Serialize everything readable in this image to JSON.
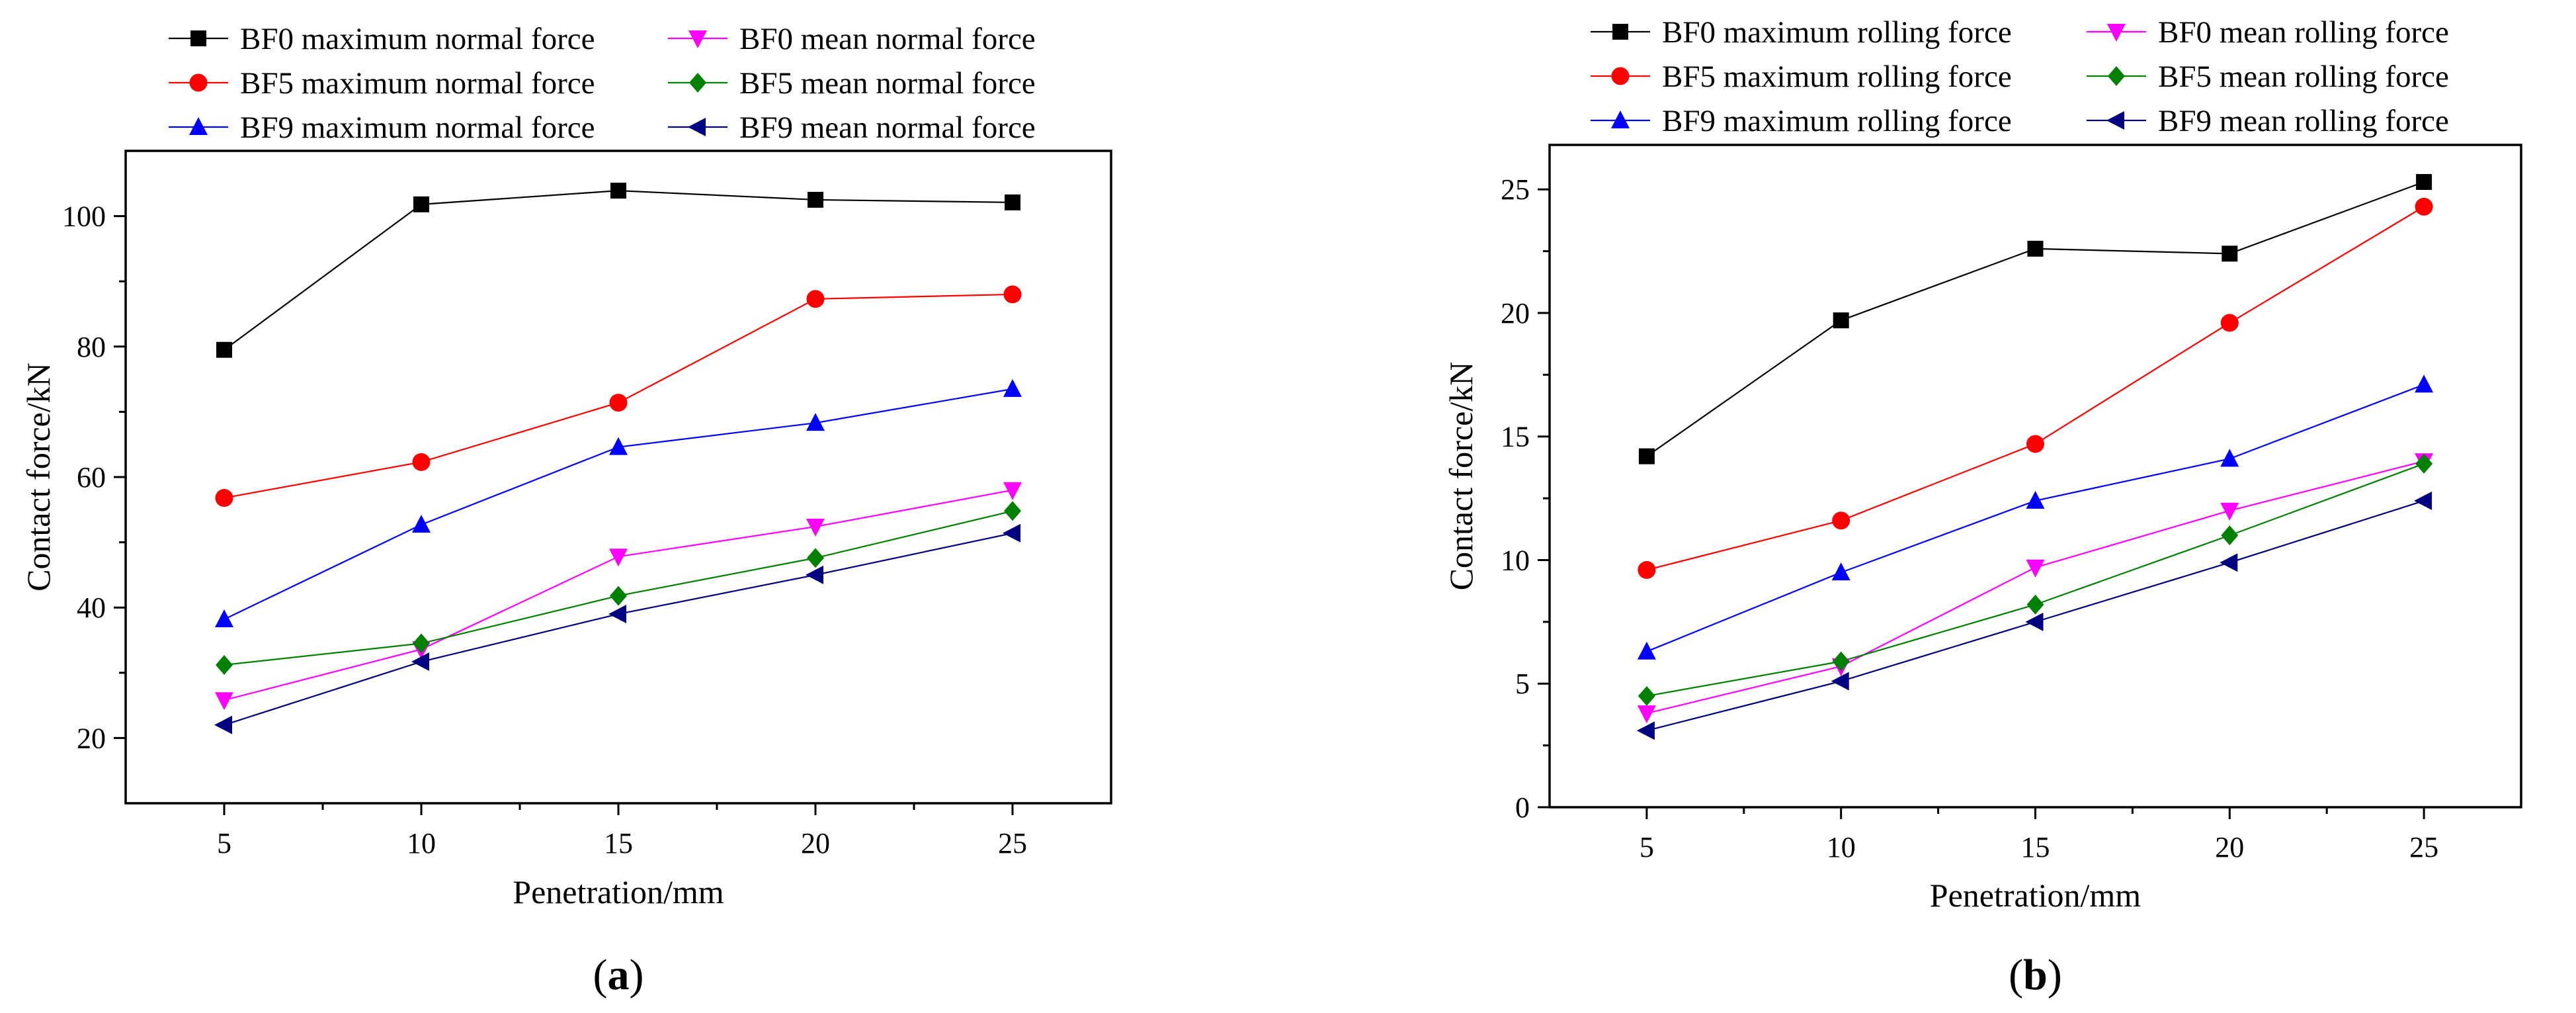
{
  "panels": [
    {
      "id": "a",
      "caption_open": "(",
      "caption_letter": "a",
      "caption_close": ")",
      "chart_data": {
        "type": "line",
        "xlabel": "Penetration/mm",
        "ylabel": "Contact force/kN",
        "xlim": [
          2.5,
          27.5
        ],
        "ylim": [
          10,
          110
        ],
        "xticks": [
          5,
          10,
          15,
          20,
          25
        ],
        "yticks": [
          20,
          40,
          60,
          80,
          100
        ],
        "grid": false,
        "legend_position": "top",
        "x": [
          5,
          10,
          15,
          20,
          25
        ],
        "series": [
          {
            "name": "BF0 maximum normal force",
            "color": "#000000",
            "marker": "square",
            "values": [
              79.5,
              101.8,
              103.9,
              102.5,
              102.1
            ]
          },
          {
            "name": "BF0 mean normal force",
            "color": "#ff00ff",
            "marker": "triangle-down",
            "values": [
              25.8,
              33.6,
              47.8,
              52.4,
              58.0
            ]
          },
          {
            "name": "BF5 maximum normal force",
            "color": "#ff0000",
            "marker": "circle",
            "values": [
              56.8,
              62.3,
              71.4,
              87.3,
              88.0
            ]
          },
          {
            "name": "BF5 mean normal force",
            "color": "#008000",
            "marker": "diamond",
            "values": [
              31.2,
              34.5,
              41.8,
              47.6,
              54.8
            ]
          },
          {
            "name": "BF9 maximum normal force",
            "color": "#0000ff",
            "marker": "triangle-up",
            "values": [
              38.2,
              52.7,
              64.6,
              68.3,
              73.5
            ]
          },
          {
            "name": "BF9 mean normal force",
            "color": "#000080",
            "marker": "triangle-left",
            "values": [
              22.0,
              31.7,
              39.0,
              45.0,
              51.4
            ]
          }
        ]
      }
    },
    {
      "id": "b",
      "caption_open": "(",
      "caption_letter": "b",
      "caption_close": ")",
      "chart_data": {
        "type": "line",
        "xlabel": "Penetration/mm",
        "ylabel": "Contact force/kN",
        "xlim": [
          2.5,
          27.5
        ],
        "ylim": [
          0,
          26.8
        ],
        "xticks": [
          5,
          10,
          15,
          20,
          25
        ],
        "yticks": [
          0,
          5,
          10,
          15,
          20,
          25
        ],
        "grid": false,
        "legend_position": "top",
        "x": [
          5,
          10,
          15,
          20,
          25
        ],
        "series": [
          {
            "name": "BF0 maximum rolling force",
            "color": "#000000",
            "marker": "square",
            "values": [
              14.2,
              19.7,
              22.6,
              22.4,
              25.3
            ]
          },
          {
            "name": "BF0 mean rolling force",
            "color": "#ff00ff",
            "marker": "triangle-down",
            "values": [
              3.8,
              5.7,
              9.7,
              12.0,
              14.0
            ]
          },
          {
            "name": "BF5 maximum rolling force",
            "color": "#ff0000",
            "marker": "circle",
            "values": [
              9.6,
              11.6,
              14.7,
              19.6,
              24.3
            ]
          },
          {
            "name": "BF5 mean rolling force",
            "color": "#008000",
            "marker": "diamond",
            "values": [
              4.5,
              5.9,
              8.2,
              11.0,
              13.9
            ]
          },
          {
            "name": "BF9 maximum rolling force",
            "color": "#0000ff",
            "marker": "triangle-up",
            "values": [
              6.3,
              9.5,
              12.4,
              14.1,
              17.1
            ]
          },
          {
            "name": "BF9 mean rolling force",
            "color": "#000080",
            "marker": "triangle-left",
            "values": [
              3.1,
              5.1,
              7.5,
              9.9,
              12.4
            ]
          }
        ]
      }
    }
  ]
}
